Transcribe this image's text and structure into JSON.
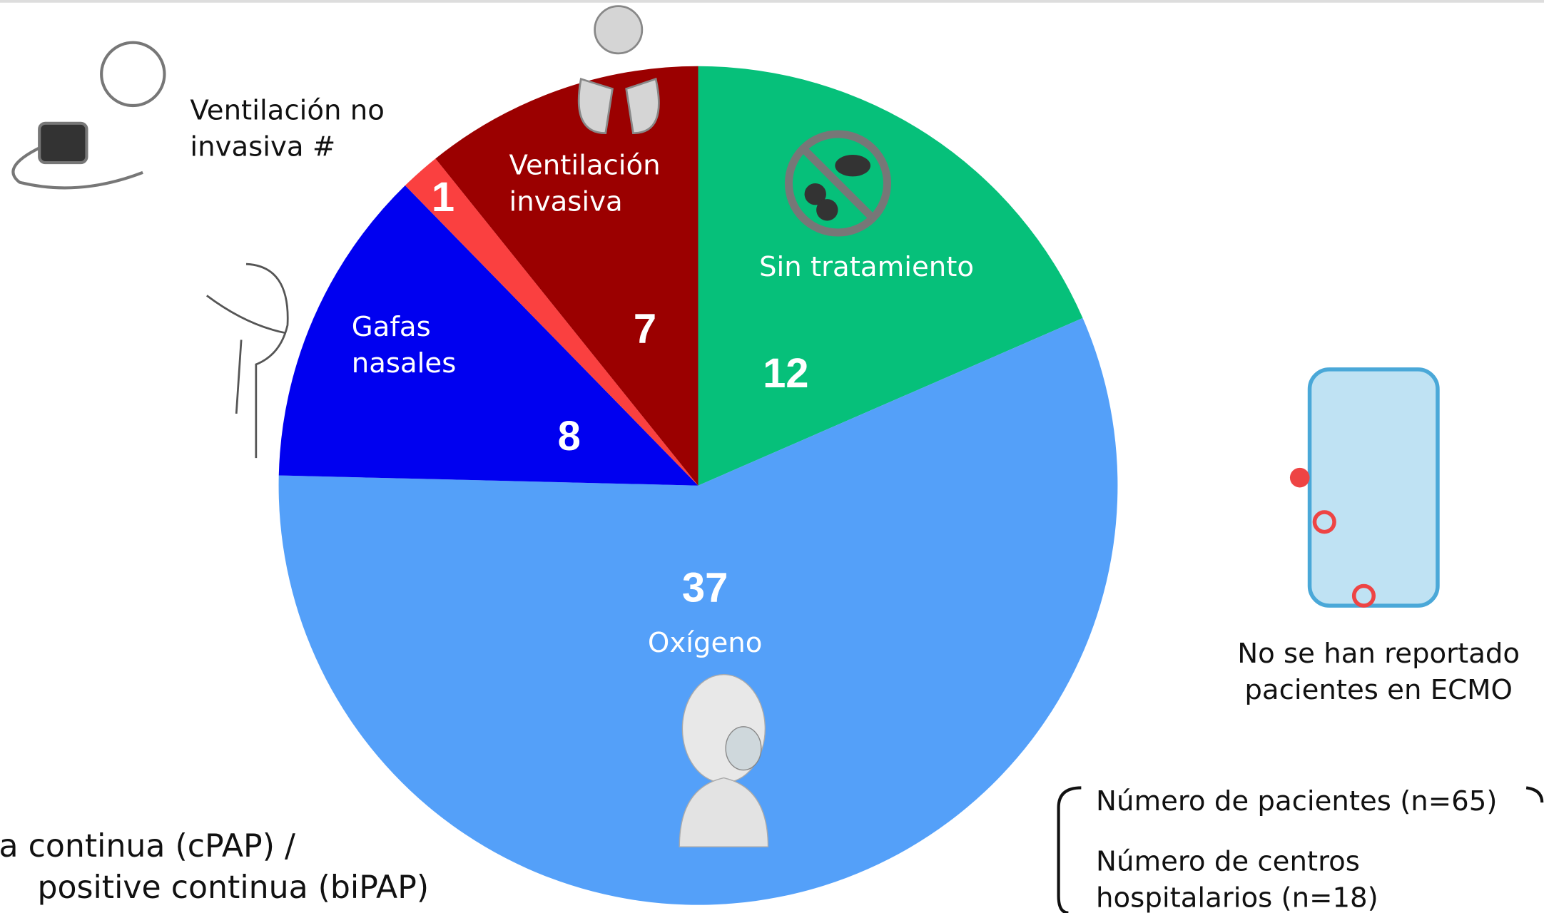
{
  "chart_data": {
    "type": "pie",
    "categories": [
      "Sin tratamiento",
      "Oxígeno",
      "Gafas nasales",
      "Ventilación no invasiva #",
      "Ventilación invasiva"
    ],
    "values": [
      12,
      37,
      8,
      1,
      7
    ],
    "colors": [
      "#06c07a",
      "#54a0f9",
      "#0000f0",
      "#fa4040",
      "#9b0000"
    ],
    "notes": [
      "ia continua (cPAP) /",
      "positive continua (biPAP)",
      "No se han reportado pacientes en ECMO",
      "Número de pacientes (n=65)",
      "Número de centros hospitalarios (n=18)"
    ]
  }
}
